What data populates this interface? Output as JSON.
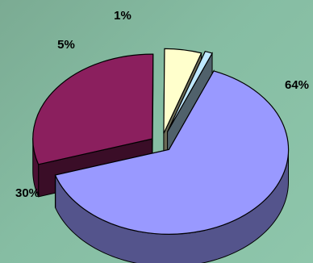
{
  "chart_data": {
    "type": "pie",
    "style": "3d-exploded",
    "categories": [
      "",
      "",
      "",
      ""
    ],
    "values": [
      64,
      30,
      5,
      1
    ],
    "labels": [
      "64%",
      "30%",
      "5%",
      "1%"
    ],
    "colors": [
      "#9999ff",
      "#8b1f5e",
      "#ffffcc",
      "#bfe8ff"
    ],
    "title": "",
    "legend": "none"
  }
}
